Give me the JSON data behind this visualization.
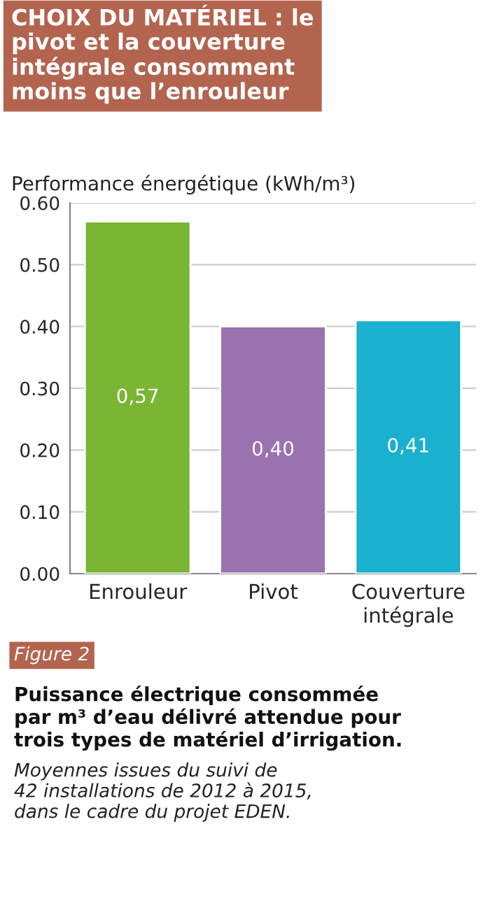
{
  "chart_data": {
    "type": "bar",
    "title": "CHOIX DU MATÉRIEL : le\npivot et la couverture\nintégrale consomment\nmoins que l’enrouleur",
    "ylabel": "Performance énergétique (kWh/m³)",
    "categories": [
      "Enrouleur",
      "Pivot",
      "Couverture\nintégrale"
    ],
    "values": [
      0.57,
      0.4,
      0.41
    ],
    "colors": [
      "#7ab534",
      "#9b72b0",
      "#1ab0d0"
    ],
    "value_labels": [
      "0,57",
      "0,40",
      "0,41"
    ],
    "ylim": [
      0,
      0.6
    ],
    "yticks": [
      {
        "value": 0,
        "label": "0.00"
      },
      {
        "value": 0.1,
        "label": "0.10"
      },
      {
        "value": 0.2,
        "label": "0.20"
      },
      {
        "value": 0.3,
        "label": "0.30"
      },
      {
        "value": 0.4,
        "label": "0.40"
      },
      {
        "value": 0.5,
        "label": "0.50"
      },
      {
        "value": 0.6,
        "label": "0.60"
      }
    ],
    "grid": "y",
    "annotations": [
      "Figure 2",
      "Puissance électrique consommée\npar m³ d’eau délivré attendue pour\ntrois types de matériel d’irrigation.",
      "Moyennes issues du suivi de\n42 installations de 2012 à 2015,\ndans le cadre du projet EDEN."
    ]
  }
}
